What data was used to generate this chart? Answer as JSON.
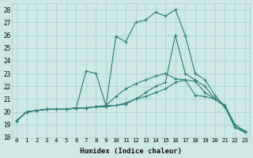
{
  "xlabel": "Humidex (Indice chaleur)",
  "ylabel": "",
  "background_color": "#cde8e5",
  "grid_color": "#aacfcc",
  "line_color": "#2d7d78",
  "xlim": [
    -0.5,
    23.5
  ],
  "ylim": [
    18,
    28.5
  ],
  "xticks": [
    0,
    1,
    2,
    3,
    4,
    5,
    6,
    7,
    8,
    9,
    10,
    11,
    12,
    13,
    14,
    15,
    16,
    17,
    18,
    19,
    20,
    21,
    22,
    23
  ],
  "yticks": [
    18,
    19,
    20,
    21,
    22,
    23,
    24,
    25,
    26,
    27,
    28
  ],
  "series": [
    [
      19.3,
      20.0,
      20.1,
      20.2,
      20.2,
      20.2,
      20.3,
      20.3,
      20.4,
      20.4,
      20.5,
      20.7,
      21.0,
      21.2,
      21.5,
      21.8,
      22.3,
      22.5,
      21.3,
      21.2,
      21.0,
      20.5,
      19.0,
      18.5
    ],
    [
      19.3,
      20.0,
      20.1,
      20.2,
      20.2,
      20.2,
      20.3,
      20.3,
      20.4,
      20.5,
      21.2,
      21.8,
      22.2,
      22.5,
      22.8,
      23.0,
      22.6,
      22.5,
      22.4,
      21.5,
      21.0,
      20.4,
      18.8,
      18.4
    ],
    [
      19.3,
      20.0,
      20.1,
      20.2,
      20.2,
      20.2,
      20.3,
      23.2,
      23.0,
      20.5,
      20.5,
      20.6,
      21.0,
      21.5,
      22.0,
      22.3,
      26.0,
      23.0,
      22.5,
      22.0,
      21.0,
      20.5,
      19.0,
      18.4
    ],
    [
      19.3,
      20.0,
      20.1,
      20.2,
      20.2,
      20.2,
      20.3,
      20.3,
      20.4,
      20.4,
      25.9,
      25.5,
      27.0,
      27.2,
      27.8,
      27.5,
      28.0,
      26.0,
      23.0,
      22.5,
      21.3,
      20.4,
      18.8,
      18.4
    ]
  ]
}
